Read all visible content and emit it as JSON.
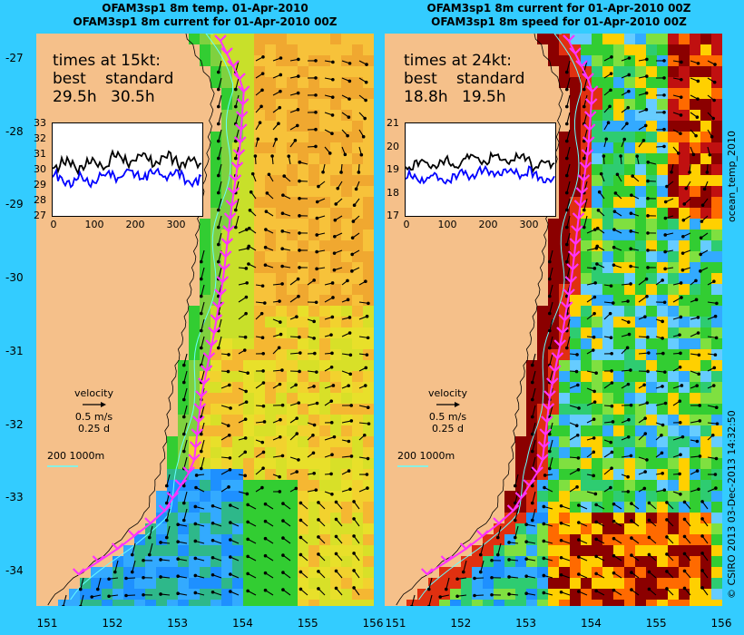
{
  "left": {
    "title_1": "OFAM3sp1 8m temp. 01-Apr-2010",
    "title_2": "OFAM3sp1 8m current for 01-Apr-2010 00Z",
    "times_heading": "times at 15kt:",
    "best_label": "best",
    "standard_label": "standard",
    "best_value": "29.5h",
    "standard_value": "30.5h",
    "inset_y_ticks": [
      "33",
      "32",
      "31",
      "30",
      "29",
      "28",
      "27"
    ],
    "inset_x_ticks": [
      "0",
      "100",
      "200",
      "300"
    ],
    "vertical_label": "",
    "palette": "temperature"
  },
  "right": {
    "title_1": "OFAM3sp1 8m current for 01-Apr-2010 00Z",
    "title_2": "OFAM3sp1 8m speed for 01-Apr-2010 00Z",
    "times_heading": "times at 24kt:",
    "best_label": "best",
    "standard_label": "standard",
    "best_value": "18.8h",
    "standard_value": "19.5h",
    "inset_y_ticks": [
      "21",
      "20",
      "19",
      "18",
      "17"
    ],
    "inset_x_ticks": [
      "0",
      "100",
      "200",
      "300"
    ],
    "vertical_label": "ocean_temp_2010",
    "palette": "speed"
  },
  "y_ticks": [
    "-27",
    "-28",
    "-29",
    "-30",
    "-31",
    "-32",
    "-33",
    "-34"
  ],
  "x_ticks": [
    "151",
    "152",
    "153",
    "154",
    "155",
    "156"
  ],
  "legend": {
    "velocity_label": "velocity",
    "speed_label": "0.5 m/s",
    "duration_label": "0.25 d"
  },
  "scale_label": "200  1000m",
  "credit": "© CSIRO 2013   03-Dec-2013 14:32:50",
  "colors": {
    "background": "#33ccff",
    "land": "#f5c08a",
    "route": "#ff33ff",
    "best_line": "#000000",
    "standard_line": "#0000ff",
    "isobath": "#66ffff"
  }
}
